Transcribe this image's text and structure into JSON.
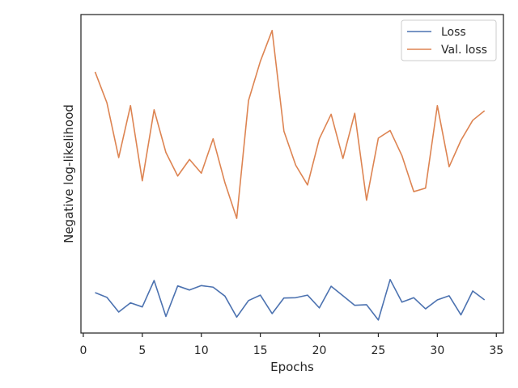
{
  "chart_data": {
    "type": "line",
    "xlabel": "Epochs",
    "ylabel": "Negative log-likelihood",
    "xlim": [
      -0.2,
      35.6
    ],
    "ylim": [
      0,
      1
    ],
    "xticks": [
      0,
      5,
      10,
      15,
      20,
      25,
      30,
      35
    ],
    "yticks_shown": false,
    "grid": false,
    "legend_position": "top-right",
    "x": [
      1,
      2,
      3,
      4,
      5,
      6,
      7,
      8,
      9,
      10,
      11,
      12,
      13,
      14,
      15,
      16,
      17,
      18,
      19,
      20,
      21,
      22,
      23,
      24,
      25,
      26,
      27,
      28,
      29,
      30,
      31,
      32,
      33,
      34
    ],
    "series": [
      {
        "name": "Loss",
        "color": "#4c72b0",
        "values": [
          0.127,
          0.112,
          0.066,
          0.095,
          0.082,
          0.165,
          0.052,
          0.148,
          0.135,
          0.149,
          0.144,
          0.116,
          0.05,
          0.102,
          0.119,
          0.061,
          0.11,
          0.111,
          0.119,
          0.079,
          0.147,
          0.117,
          0.087,
          0.089,
          0.041,
          0.168,
          0.097,
          0.111,
          0.076,
          0.104,
          0.117,
          0.057,
          0.132,
          0.104
        ]
      },
      {
        "name": "Val. loss",
        "color": "#dd8452",
        "values": [
          0.82,
          0.723,
          0.551,
          0.714,
          0.478,
          0.701,
          0.567,
          0.493,
          0.545,
          0.502,
          0.61,
          0.472,
          0.36,
          0.73,
          0.853,
          0.95,
          0.634,
          0.527,
          0.465,
          0.61,
          0.687,
          0.548,
          0.69,
          0.417,
          0.612,
          0.636,
          0.557,
          0.444,
          0.455,
          0.714,
          0.522,
          0.605,
          0.668,
          0.698
        ]
      }
    ]
  }
}
